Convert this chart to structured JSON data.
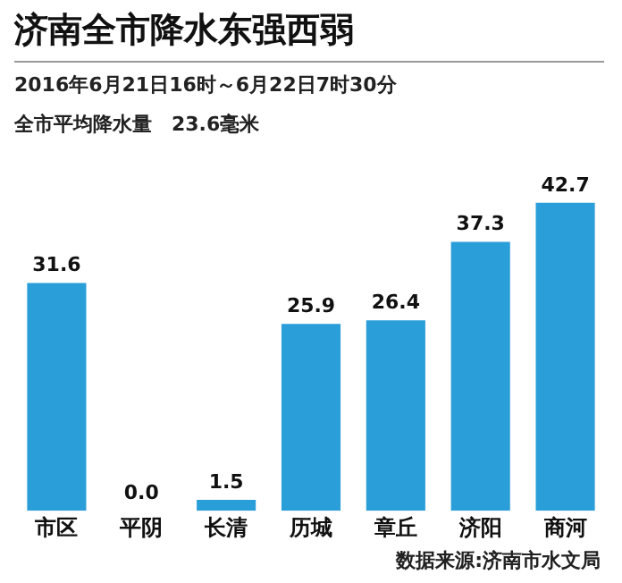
{
  "chart_data": {
    "type": "bar",
    "title": "济南全市降水东强西弱",
    "subtitle": "2016年6月21日16时～6月22日7时30分",
    "annotations": [
      "全市平均降水量　23.6毫米",
      "数据来源:济南市水文局"
    ],
    "categories": [
      "市区",
      "平阴",
      "长清",
      "历城",
      "章丘",
      "济阳",
      "商河"
    ],
    "values": [
      31.6,
      0.0,
      1.5,
      25.9,
      26.4,
      37.3,
      42.7
    ],
    "value_labels": [
      "31.6",
      "0.0",
      "1.5",
      "25.9",
      "26.4",
      "37.3",
      "42.7"
    ],
    "color": "#2a9ed8",
    "grid": false,
    "legend": false
  }
}
